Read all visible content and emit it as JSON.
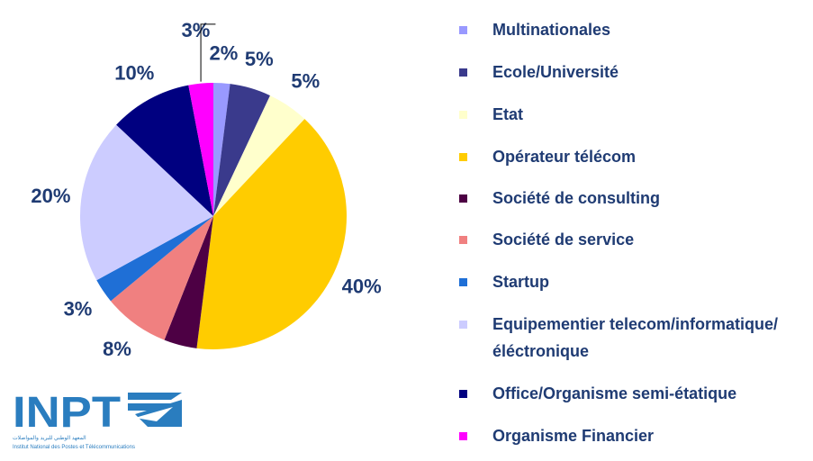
{
  "chart_data": {
    "type": "pie",
    "categories": [
      "Multinationales",
      "Ecole/Université",
      "Etat",
      "Opérateur télécom",
      "Société de consulting",
      "Société de service",
      "Startup",
      "Equipementier telecom/informatique/éléctronique",
      "Office/Organisme semi-étatique",
      "Organisme Financier"
    ],
    "values": [
      2,
      5,
      5,
      40,
      4,
      8,
      3,
      20,
      10,
      3
    ],
    "data_labels": [
      "2%",
      "5%",
      "5%",
      "40%",
      "",
      "8%",
      "3%",
      "20%",
      "10%",
      "3%"
    ],
    "colors": [
      "#9999ff",
      "#3a3a8c",
      "#ffffcc",
      "#ffcc00",
      "#4d0044",
      "#f08080",
      "#1f6fd6",
      "#ccccff",
      "#000080",
      "#ff00ff"
    ],
    "legend_position": "right"
  },
  "legend": [
    {
      "label": " Multinationales",
      "color": "#9999ff"
    },
    {
      "label": "Ecole/Université",
      "color": "#3a3a8c"
    },
    {
      "label": "Etat",
      "color": "#ffffcc"
    },
    {
      "label": "Opérateur télécom",
      "color": "#ffcc00"
    },
    {
      "label": "Société de consulting",
      "color": "#4d0044"
    },
    {
      "label": "Société de service",
      "color": "#f08080"
    },
    {
      "label": "Startup",
      "color": "#1f6fd6"
    },
    {
      "label": "Equipementier telecom/informatique/éléctronique",
      "color": "#ccccff"
    },
    {
      "label": "Office/Organisme semi-étatique",
      "color": "#000080"
    },
    {
      "label": "Organisme Financier",
      "color": "#ff00ff"
    }
  ],
  "logo": {
    "text": "INPT",
    "subtitle": "Institut National des Postes et Télécommunications",
    "arabic": "المعهد الوطني للبريد والمواصلات"
  }
}
